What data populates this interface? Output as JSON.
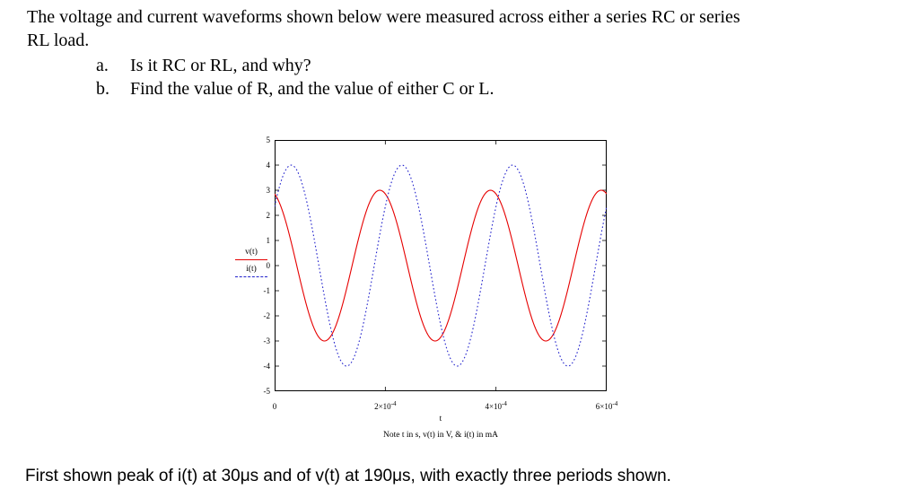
{
  "header": {
    "line1": "The voltage and current waveforms shown below were measured across either a series RC or series",
    "line2": "RL load.",
    "item_a_label": "a.",
    "item_a_text": "Is it RC or RL, and why?",
    "item_b_label": "b.",
    "item_b_text": "Find the value of R, and the value of either C or L."
  },
  "chart": {
    "legend": {
      "v_label": "v(t)",
      "i_label": "i(t)"
    },
    "y_ticks": [
      "5",
      "4",
      "3",
      "2",
      "1",
      "0",
      "-1",
      "-2",
      "-3",
      "-4",
      "-5"
    ],
    "x_ticks": [
      {
        "base": "0",
        "exp": ""
      },
      {
        "base": "2×10",
        "exp": "-4"
      },
      {
        "base": "4×10",
        "exp": "-4"
      },
      {
        "base": "6×10",
        "exp": "-4"
      }
    ],
    "xlabel": "t",
    "note": "Note t in s, v(t) in V, & i(t) in mA"
  },
  "chart_data": {
    "type": "line",
    "title": "",
    "xlabel": "t",
    "ylabel": "v(t), i(t)",
    "x_range_s": [
      0,
      0.0006
    ],
    "ylim": [
      -5,
      5
    ],
    "x_tick_values_s": [
      0,
      0.0002,
      0.0004,
      0.0006
    ],
    "y_tick_values": [
      5,
      4,
      3,
      2,
      1,
      0,
      -1,
      -2,
      -3,
      -4,
      -5
    ],
    "periods_shown": 3,
    "series": [
      {
        "name": "v(t)",
        "unit": "V",
        "amplitude": 3,
        "period_s": 0.0002,
        "first_peak_s": 0.00019,
        "style": "solid",
        "color": "#e60000"
      },
      {
        "name": "i(t)",
        "unit": "mA",
        "amplitude": 4,
        "period_s": 0.0002,
        "first_peak_s": 3e-05,
        "style": "dotted",
        "color": "#2222cc"
      }
    ]
  },
  "footer": {
    "text": "First shown peak of i(t) at 30μs and of v(t) at 190μs, with exactly three periods shown."
  }
}
